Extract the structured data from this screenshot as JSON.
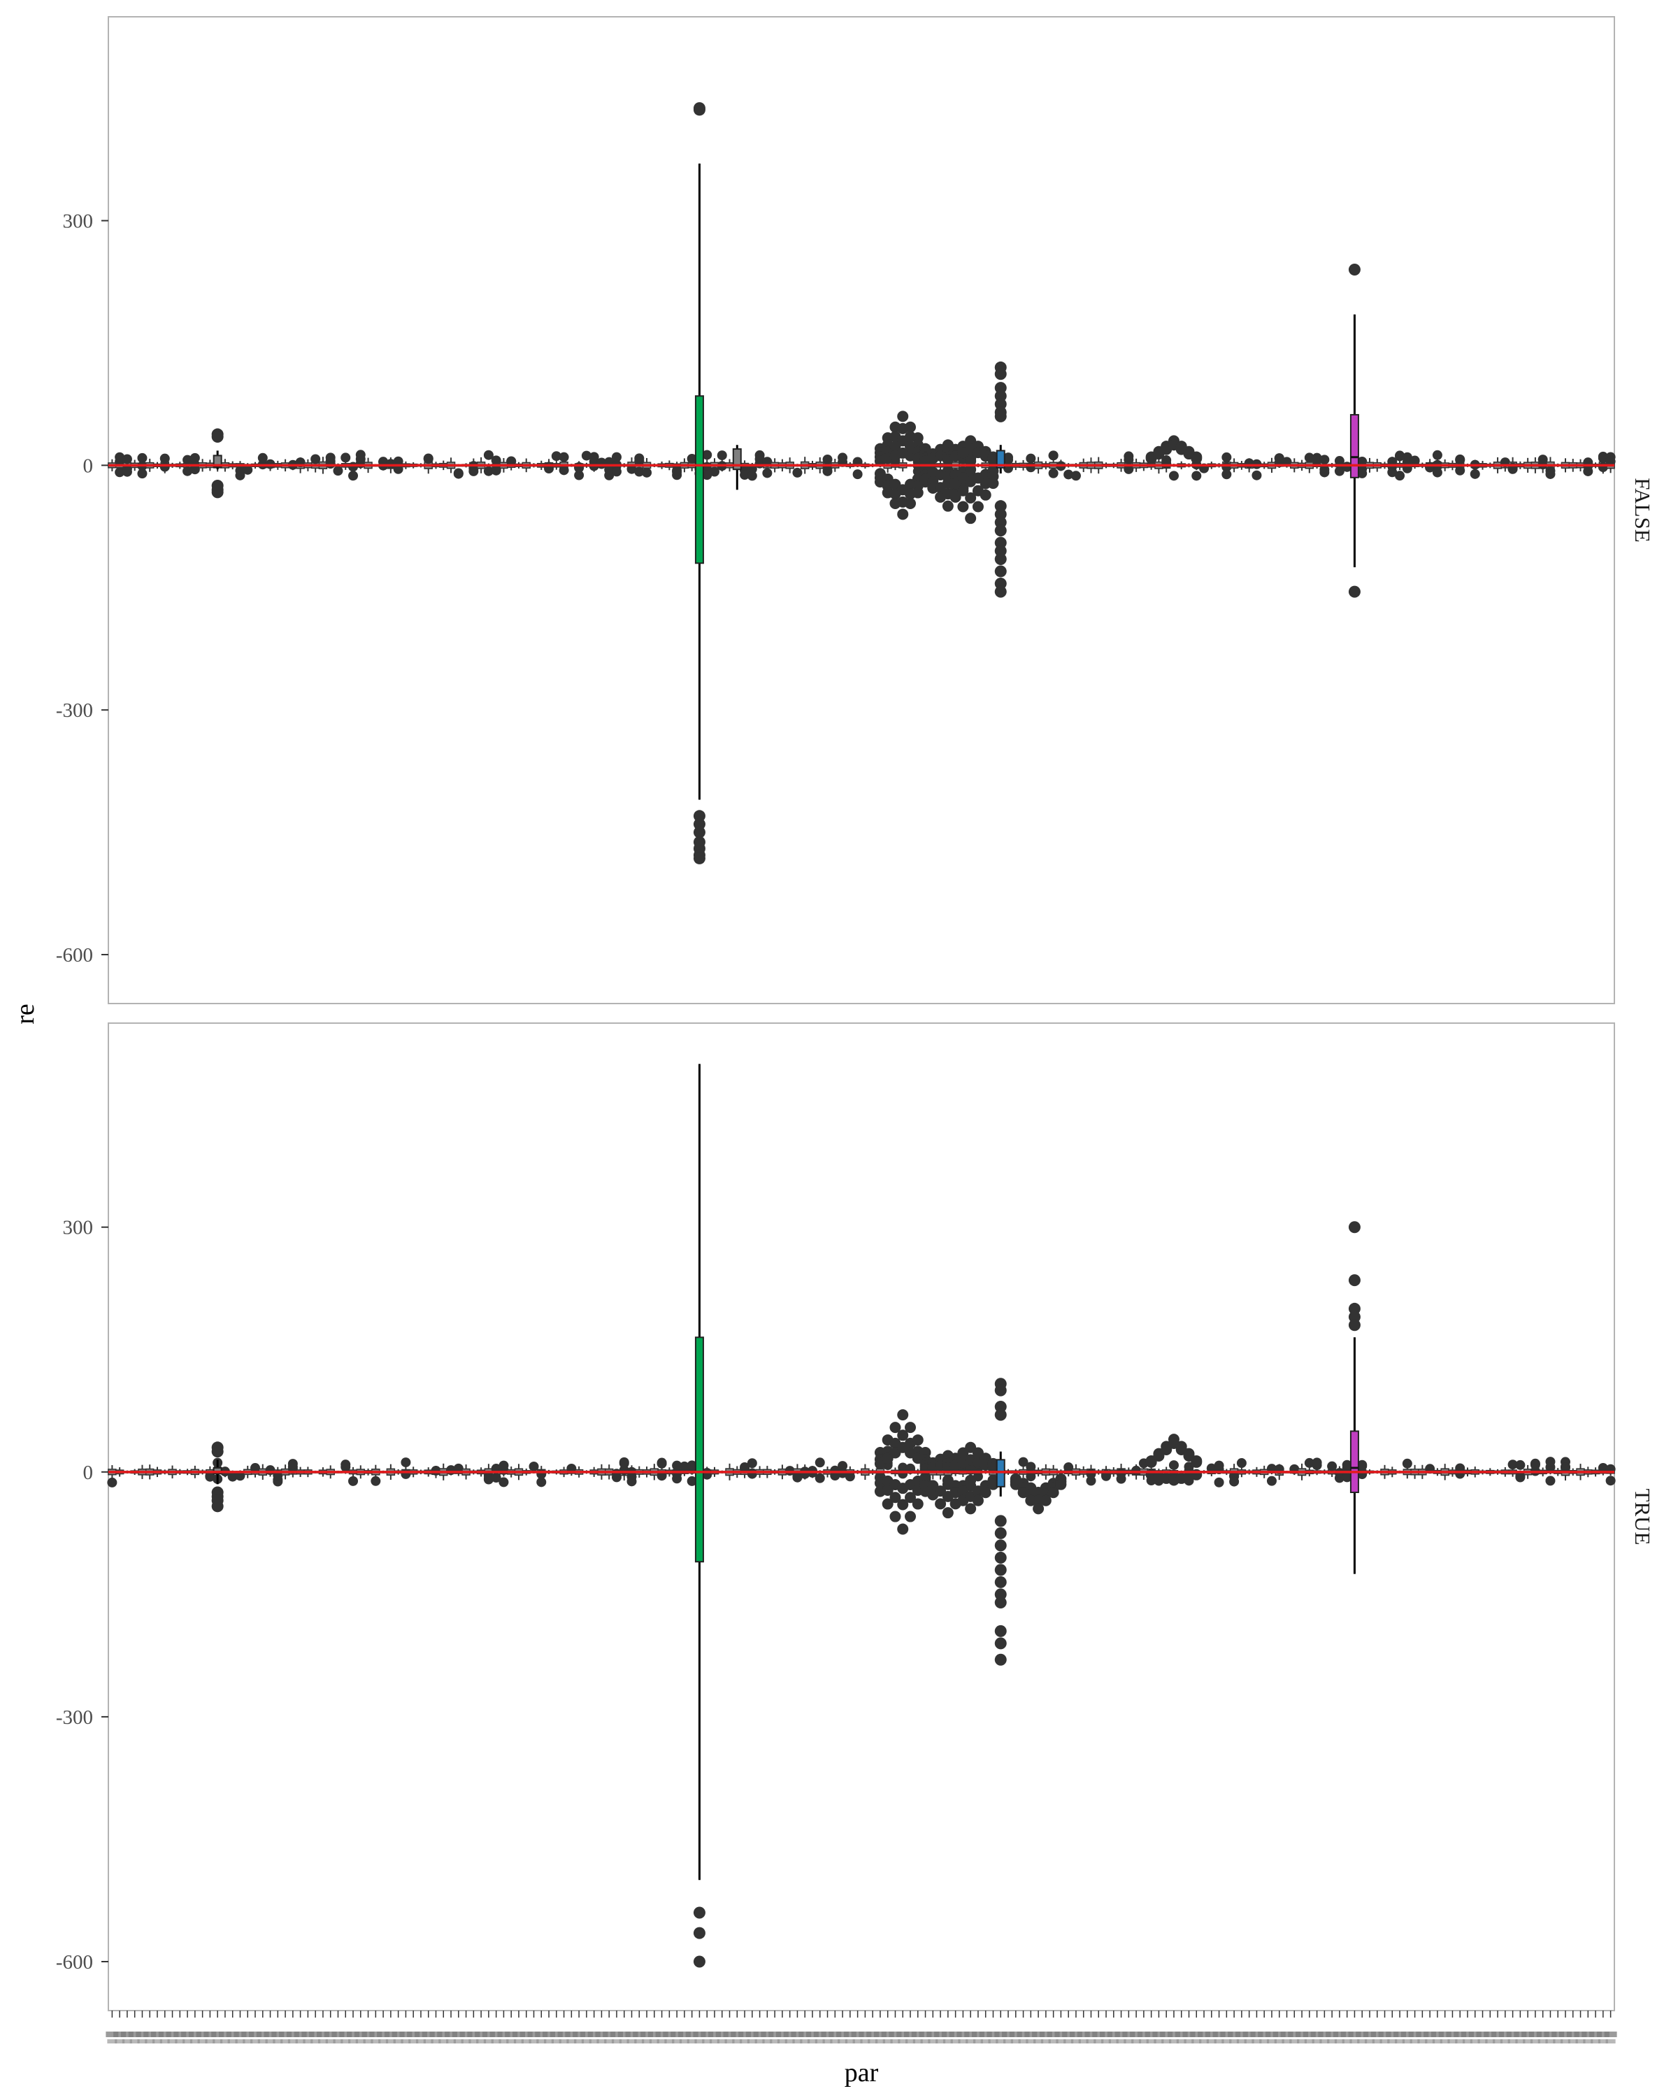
{
  "chart_data": {
    "type": "boxplot",
    "xlabel": "par",
    "ylabel": "re",
    "ylim": [
      -660,
      550
    ],
    "yticks": [
      -600,
      -300,
      0,
      300
    ],
    "ytick_labels": [
      "-600",
      "-300",
      "0",
      "300"
    ],
    "reference_line": {
      "y": 0,
      "color": "#e41a1c"
    },
    "category_count": 200,
    "category_labels_legible": false,
    "grid": false,
    "panels": [
      {
        "facet": "FALSE",
        "boxes": [
          {
            "index": 14,
            "q1": -2,
            "median": 0,
            "q3": 12,
            "whisker_low": -5,
            "whisker_high": 18,
            "fill": "#7f7f7f",
            "outliers": [
              38,
              35,
              -25,
              -30,
              -33
            ]
          },
          {
            "index": 78,
            "q1": -120,
            "median": 0,
            "q3": 85,
            "whisker_low": -410,
            "whisker_high": 370,
            "fill": "#00a550",
            "outliers": [
              438,
              436,
              -430,
              -440,
              -450,
              -462,
              -470,
              -478,
              -482
            ]
          },
          {
            "index": 83,
            "q1": -5,
            "median": 0,
            "q3": 20,
            "whisker_low": -30,
            "whisker_high": 25,
            "fill": "#7f7f7f",
            "outliers": []
          },
          {
            "index": 118,
            "q1": -3,
            "median": 0,
            "q3": 18,
            "whisker_low": -10,
            "whisker_high": 25,
            "fill": "#2c7bb6",
            "outliers": [
              120,
              112,
              95,
              85,
              75,
              65,
              60,
              -50,
              -60,
              -70,
              -80,
              -95,
              -105,
              -115,
              -130,
              -145,
              -155
            ]
          },
          {
            "index": 165,
            "q1": -15,
            "median": 10,
            "q3": 62,
            "whisker_low": -125,
            "whisker_high": 185,
            "fill": "#c13ec1",
            "outliers": [
              240,
              -155
            ]
          }
        ],
        "outlier_clusters": [
          {
            "index": 105,
            "values": [
              60,
              45,
              30,
              15,
              -30,
              -45,
              -60
            ]
          },
          {
            "index": 111,
            "values": [
              25,
              15,
              -15,
              -35,
              -50
            ]
          },
          {
            "index": 114,
            "values": [
              30,
              20,
              -20,
              -40,
              -65
            ]
          },
          {
            "index": 141,
            "values": [
              30,
              25
            ]
          }
        ]
      },
      {
        "facet": "TRUE",
        "boxes": [
          {
            "index": 14,
            "q1": -2,
            "median": 0,
            "q3": 5,
            "whisker_low": -15,
            "whisker_high": 15,
            "fill": "#7f7f7f",
            "outliers": [
              30,
              25,
              -25,
              -30,
              -35,
              -42
            ]
          },
          {
            "index": 78,
            "q1": -110,
            "median": 0,
            "q3": 165,
            "whisker_low": -500,
            "whisker_high": 500,
            "fill": "#00a550",
            "outliers": [
              -540,
              -565,
              -600
            ]
          },
          {
            "index": 118,
            "q1": -18,
            "median": 0,
            "q3": 15,
            "whisker_low": -30,
            "whisker_high": 25,
            "fill": "#2c7bb6",
            "outliers": [
              108,
              100,
              80,
              70,
              -60,
              -75,
              -90,
              -105,
              -120,
              -135,
              -150,
              -160,
              -195,
              -210,
              -230
            ]
          },
          {
            "index": 165,
            "q1": -25,
            "median": 5,
            "q3": 50,
            "whisker_low": -125,
            "whisker_high": 165,
            "fill": "#c13ec1",
            "outliers": [
              300,
              235,
              200,
              190,
              180
            ]
          }
        ],
        "outlier_clusters": [
          {
            "index": 105,
            "values": [
              70,
              45,
              30,
              -20,
              -40,
              -70
            ]
          },
          {
            "index": 111,
            "values": [
              20,
              10,
              -30,
              -50
            ]
          },
          {
            "index": 114,
            "values": [
              30,
              15,
              -30,
              -45
            ]
          },
          {
            "index": 123,
            "values": [
              -25,
              -35,
              -45
            ]
          },
          {
            "index": 141,
            "values": [
              40,
              35,
              -10
            ]
          }
        ]
      }
    ]
  }
}
